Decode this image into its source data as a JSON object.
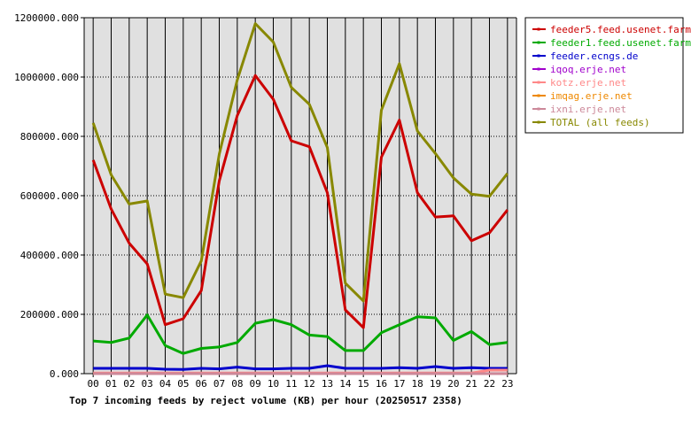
{
  "chart_data": {
    "type": "line",
    "title": "Top 7 incoming feeds by reject volume (KB) per hour (20250517 2358)",
    "x": [
      "00",
      "01",
      "02",
      "03",
      "04",
      "05",
      "06",
      "07",
      "08",
      "09",
      "10",
      "11",
      "12",
      "13",
      "14",
      "15",
      "16",
      "17",
      "18",
      "19",
      "20",
      "21",
      "22",
      "23"
    ],
    "y_ticks": [
      "0.000",
      "200000.000",
      "400000.000",
      "600000.000",
      "800000.000",
      "1000000.000",
      "1200000.000"
    ],
    "ylim": [
      0,
      1200000
    ],
    "grid": true,
    "legend_position": "right",
    "series": [
      {
        "name": "feeder5.feed.usenet.farm",
        "color": "#cc0000",
        "values": [
          720000,
          555000,
          440000,
          370000,
          165000,
          185000,
          280000,
          650000,
          870000,
          1005000,
          925000,
          785000,
          765000,
          610000,
          215000,
          155000,
          730000,
          855000,
          610000,
          528000,
          532000,
          448000,
          475000,
          552000
        ]
      },
      {
        "name": "feeder1.feed.usenet.farm",
        "color": "#00aa00",
        "values": [
          110000,
          105000,
          120000,
          198000,
          95000,
          68000,
          85000,
          90000,
          105000,
          170000,
          182000,
          165000,
          130000,
          125000,
          78000,
          78000,
          138000,
          165000,
          192000,
          188000,
          112000,
          142000,
          98000,
          105000
        ]
      },
      {
        "name": "feeder.ecngs.de",
        "color": "#0000cc",
        "values": [
          18000,
          18000,
          18000,
          18000,
          15000,
          14000,
          18000,
          16000,
          22000,
          16000,
          16000,
          18000,
          18000,
          27000,
          18000,
          18000,
          18000,
          20000,
          18000,
          24000,
          18000,
          20000,
          18000,
          18000
        ]
      },
      {
        "name": "iqoq.erje.net",
        "color": "#a000cc",
        "values": [
          0,
          0,
          0,
          0,
          0,
          0,
          0,
          0,
          0,
          0,
          0,
          0,
          0,
          0,
          0,
          0,
          0,
          0,
          0,
          0,
          0,
          0,
          0,
          0
        ]
      },
      {
        "name": "kotz.erje.net",
        "color": "#ff8888",
        "values": [
          2000,
          2000,
          2000,
          2000,
          2000,
          2000,
          2000,
          2000,
          2000,
          2000,
          2000,
          2000,
          2000,
          2000,
          2000,
          2000,
          2000,
          2000,
          2000,
          2000,
          2000,
          2000,
          12000,
          12000
        ]
      },
      {
        "name": "imqag.erje.net",
        "color": "#ee8800",
        "values": [
          0,
          0,
          0,
          0,
          0,
          0,
          0,
          0,
          0,
          0,
          0,
          0,
          0,
          0,
          0,
          0,
          0,
          0,
          0,
          0,
          0,
          0,
          0,
          0
        ]
      },
      {
        "name": "ixni.erje.net",
        "color": "#cc8899",
        "values": [
          0,
          0,
          0,
          0,
          0,
          0,
          0,
          0,
          0,
          0,
          0,
          0,
          0,
          0,
          0,
          0,
          0,
          0,
          0,
          0,
          0,
          0,
          0,
          0
        ]
      },
      {
        "name": "TOTAL (all feeds)",
        "color": "#888800",
        "values": [
          845000,
          670000,
          572000,
          582000,
          268000,
          256000,
          380000,
          740000,
          990000,
          1180000,
          1118000,
          965000,
          908000,
          762000,
          305000,
          245000,
          888000,
          1045000,
          818000,
          742000,
          660000,
          605000,
          598000,
          675000
        ]
      }
    ]
  }
}
